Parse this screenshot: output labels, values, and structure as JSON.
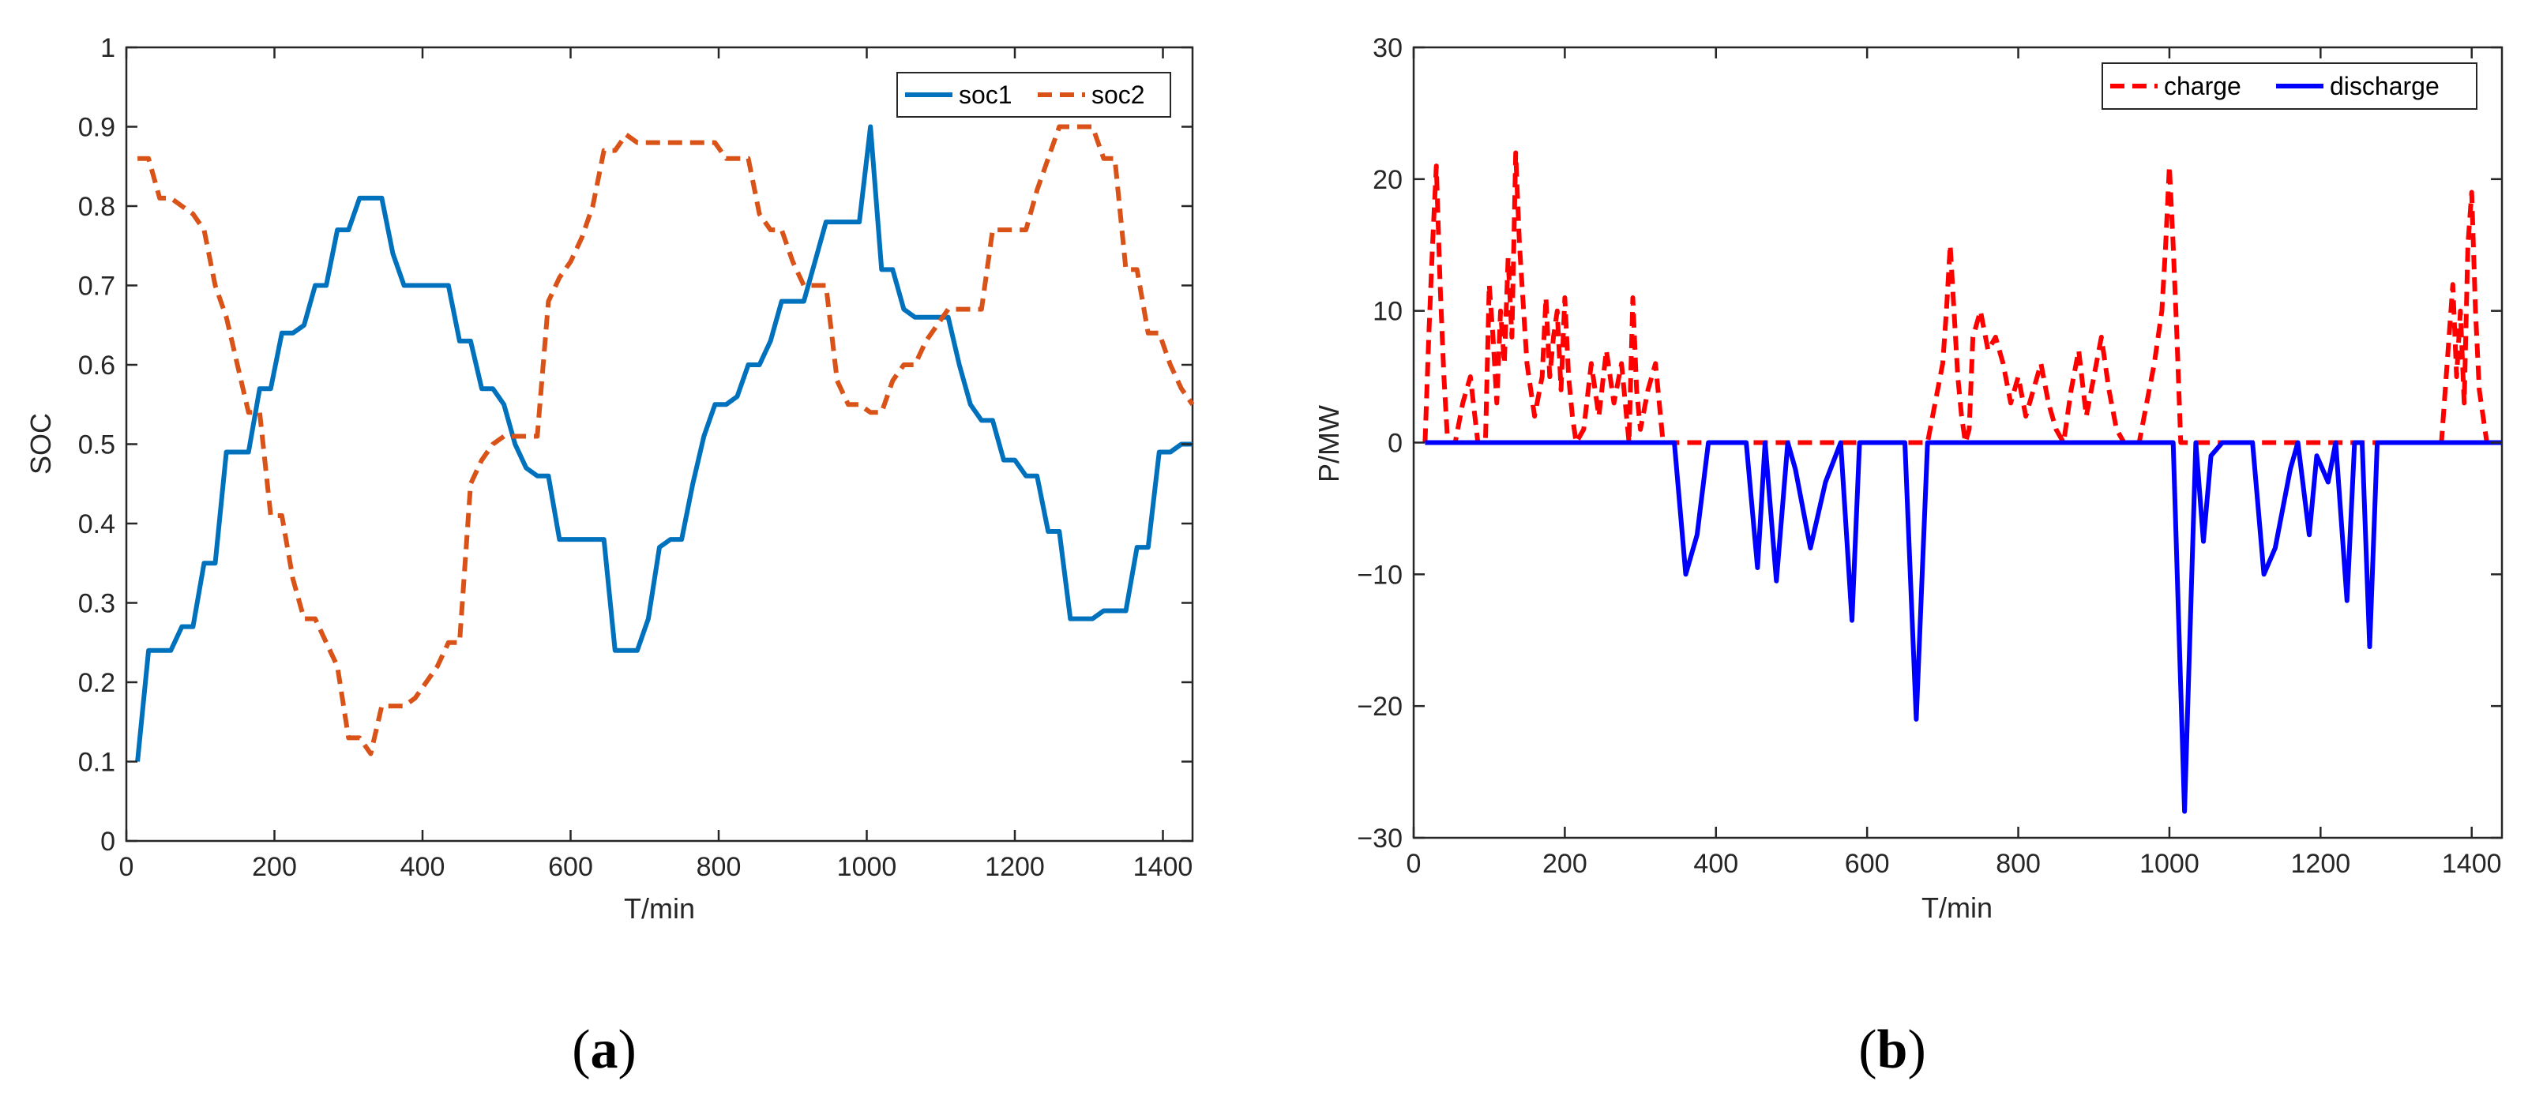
{
  "chart_data": [
    {
      "type": "line",
      "panel": "a",
      "caption_open": "(",
      "caption_letter": "a",
      "caption_close": ")",
      "xlabel": "T/min",
      "ylabel": "SOC",
      "xlim": [
        0,
        1440
      ],
      "ylim": [
        0,
        1
      ],
      "xticks": [
        0,
        200,
        400,
        600,
        800,
        1000,
        1200,
        1400
      ],
      "yticks": [
        0,
        0.1,
        0.2,
        0.3,
        0.4,
        0.5,
        0.6,
        0.7,
        0.8,
        0.9,
        1
      ],
      "grid": false,
      "legend_position": "top-right",
      "series": [
        {
          "name": "soc1",
          "color": "#0072BD",
          "dash": "solid",
          "x": [
            15,
            30,
            45,
            60,
            75,
            90,
            105,
            120,
            135,
            150,
            165,
            180,
            195,
            210,
            225,
            240,
            255,
            270,
            285,
            300,
            315,
            330,
            345,
            360,
            375,
            390,
            405,
            420,
            435,
            450,
            465,
            480,
            495,
            510,
            525,
            540,
            555,
            570,
            585,
            600,
            615,
            630,
            645,
            660,
            675,
            690,
            705,
            720,
            735,
            750,
            765,
            780,
            795,
            810,
            825,
            840,
            855,
            870,
            885,
            900,
            915,
            930,
            945,
            960,
            975,
            990,
            1005,
            1020,
            1035,
            1050,
            1065,
            1080,
            1095,
            1110,
            1125,
            1140,
            1155,
            1170,
            1185,
            1200,
            1215,
            1230,
            1245,
            1260,
            1275,
            1290,
            1305,
            1320,
            1335,
            1350,
            1365,
            1380,
            1395,
            1410,
            1425,
            1440
          ],
          "values": [
            0.1,
            0.24,
            0.24,
            0.24,
            0.27,
            0.27,
            0.35,
            0.35,
            0.49,
            0.49,
            0.49,
            0.57,
            0.57,
            0.64,
            0.64,
            0.65,
            0.7,
            0.7,
            0.77,
            0.77,
            0.81,
            0.81,
            0.81,
            0.74,
            0.7,
            0.7,
            0.7,
            0.7,
            0.7,
            0.63,
            0.63,
            0.57,
            0.57,
            0.55,
            0.5,
            0.47,
            0.46,
            0.46,
            0.38,
            0.38,
            0.38,
            0.38,
            0.38,
            0.24,
            0.24,
            0.24,
            0.28,
            0.37,
            0.38,
            0.38,
            0.45,
            0.51,
            0.55,
            0.55,
            0.56,
            0.6,
            0.6,
            0.63,
            0.68,
            0.68,
            0.68,
            0.73,
            0.78,
            0.78,
            0.78,
            0.78,
            0.9,
            0.72,
            0.72,
            0.67,
            0.66,
            0.66,
            0.66,
            0.66,
            0.6,
            0.55,
            0.53,
            0.53,
            0.48,
            0.48,
            0.46,
            0.46,
            0.39,
            0.39,
            0.28,
            0.28,
            0.28,
            0.29,
            0.29,
            0.29,
            0.37,
            0.37,
            0.49,
            0.49,
            0.5,
            0.5
          ]
        },
        {
          "name": "soc2",
          "color": "#D95319",
          "dash": "dashed",
          "x": [
            15,
            30,
            45,
            60,
            75,
            90,
            105,
            120,
            135,
            150,
            165,
            180,
            195,
            210,
            225,
            240,
            255,
            270,
            285,
            300,
            315,
            330,
            345,
            360,
            375,
            390,
            405,
            420,
            435,
            450,
            465,
            480,
            495,
            510,
            525,
            540,
            555,
            570,
            585,
            600,
            615,
            630,
            645,
            660,
            675,
            690,
            705,
            720,
            735,
            750,
            765,
            780,
            795,
            810,
            825,
            840,
            855,
            870,
            885,
            900,
            915,
            930,
            945,
            960,
            975,
            990,
            1005,
            1020,
            1035,
            1050,
            1065,
            1080,
            1095,
            1110,
            1125,
            1140,
            1155,
            1170,
            1185,
            1200,
            1215,
            1230,
            1245,
            1260,
            1275,
            1290,
            1305,
            1320,
            1335,
            1350,
            1365,
            1380,
            1395,
            1410,
            1425,
            1440
          ],
          "values": [
            0.86,
            0.86,
            0.81,
            0.81,
            0.8,
            0.79,
            0.77,
            0.7,
            0.66,
            0.6,
            0.54,
            0.54,
            0.41,
            0.41,
            0.33,
            0.28,
            0.28,
            0.25,
            0.22,
            0.13,
            0.13,
            0.11,
            0.17,
            0.17,
            0.17,
            0.18,
            0.2,
            0.22,
            0.25,
            0.25,
            0.45,
            0.48,
            0.5,
            0.51,
            0.51,
            0.51,
            0.51,
            0.68,
            0.71,
            0.73,
            0.76,
            0.8,
            0.87,
            0.87,
            0.89,
            0.88,
            0.88,
            0.88,
            0.88,
            0.88,
            0.88,
            0.88,
            0.88,
            0.86,
            0.86,
            0.86,
            0.79,
            0.77,
            0.77,
            0.73,
            0.7,
            0.7,
            0.7,
            0.58,
            0.55,
            0.55,
            0.54,
            0.54,
            0.58,
            0.6,
            0.6,
            0.63,
            0.65,
            0.67,
            0.67,
            0.67,
            0.67,
            0.77,
            0.77,
            0.77,
            0.77,
            0.82,
            0.86,
            0.9,
            0.9,
            0.9,
            0.9,
            0.86,
            0.86,
            0.72,
            0.72,
            0.64,
            0.64,
            0.6,
            0.57,
            0.55
          ]
        }
      ]
    },
    {
      "type": "line",
      "panel": "b",
      "caption_open": "(",
      "caption_letter": "b",
      "caption_close": ")",
      "xlabel": "T/min",
      "ylabel": "P/MW",
      "xlim": [
        0,
        1440
      ],
      "ylim": [
        -30,
        30
      ],
      "xticks": [
        0,
        200,
        400,
        600,
        800,
        1000,
        1200,
        1400
      ],
      "yticks": [
        -30,
        -20,
        -10,
        0,
        10,
        20,
        30
      ],
      "ytick_labels": [
        "−30",
        "−20",
        "−10",
        "0",
        "10",
        "20",
        "30"
      ],
      "grid": false,
      "legend_position": "top-right",
      "series": [
        {
          "name": "charge",
          "color": "#FF0000",
          "dash": "dashed",
          "x": [
            15,
            20,
            25,
            30,
            35,
            40,
            45,
            55,
            65,
            75,
            85,
            95,
            100,
            105,
            110,
            115,
            120,
            125,
            130,
            135,
            140,
            150,
            160,
            170,
            175,
            180,
            185,
            190,
            195,
            200,
            205,
            210,
            215,
            225,
            235,
            245,
            255,
            265,
            275,
            285,
            290,
            295,
            300,
            310,
            320,
            330,
            340,
            680,
            690,
            700,
            705,
            710,
            715,
            720,
            725,
            730,
            735,
            740,
            750,
            760,
            770,
            780,
            790,
            800,
            810,
            820,
            830,
            840,
            850,
            860,
            870,
            880,
            890,
            900,
            910,
            920,
            930,
            940,
            950,
            960,
            970,
            980,
            990,
            995,
            1000,
            1005,
            1010,
            1015,
            1020,
            1030,
            1300,
            1320,
            1340,
            1350,
            1360,
            1370,
            1375,
            1380,
            1385,
            1390,
            1395,
            1400,
            1405,
            1410,
            1420,
            1430,
            1440
          ],
          "values": [
            0,
            8,
            15,
            21,
            12,
            5,
            0,
            0,
            3,
            5,
            0,
            0,
            12,
            8,
            3,
            10,
            6,
            14,
            8,
            22,
            15,
            6,
            2,
            5,
            11,
            5,
            8,
            10,
            4,
            11,
            5,
            2,
            0,
            1,
            6,
            2,
            7,
            3,
            6,
            0,
            11,
            4,
            1,
            4,
            6,
            0,
            0,
            0,
            3,
            6,
            10,
            15,
            10,
            5,
            2,
            0,
            1,
            8,
            10,
            7,
            8,
            6,
            3,
            5,
            2,
            4,
            6,
            3,
            1,
            0,
            4,
            7,
            2,
            5,
            8,
            4,
            1,
            0,
            0,
            0,
            3,
            6,
            10,
            15,
            21,
            15,
            8,
            0,
            0,
            0,
            0,
            0,
            0,
            0,
            0,
            8,
            12,
            5,
            10,
            3,
            15,
            19,
            10,
            4,
            0,
            0,
            0
          ]
        },
        {
          "name": "discharge",
          "color": "#0000FF",
          "dash": "solid",
          "x": [
            15,
            345,
            360,
            375,
            390,
            440,
            455,
            465,
            480,
            495,
            505,
            525,
            545,
            565,
            580,
            590,
            600,
            650,
            665,
            680,
            1005,
            1020,
            1035,
            1045,
            1055,
            1070,
            1090,
            1110,
            1125,
            1140,
            1160,
            1170,
            1185,
            1195,
            1210,
            1220,
            1235,
            1245,
            1255,
            1265,
            1275,
            1285,
            1300,
            1440
          ],
          "values": [
            0,
            0,
            -10,
            -7,
            0,
            0,
            -9.5,
            0,
            -10.5,
            0,
            -2,
            -8,
            -3,
            0,
            -13.5,
            0,
            0,
            0,
            -21,
            0,
            0,
            -28,
            0,
            -7.5,
            -1,
            0,
            0,
            0,
            -10,
            -8,
            -2,
            0,
            -7,
            -1,
            -3,
            0,
            -12,
            0,
            0,
            -15.5,
            0,
            0,
            0,
            0
          ]
        }
      ]
    }
  ]
}
